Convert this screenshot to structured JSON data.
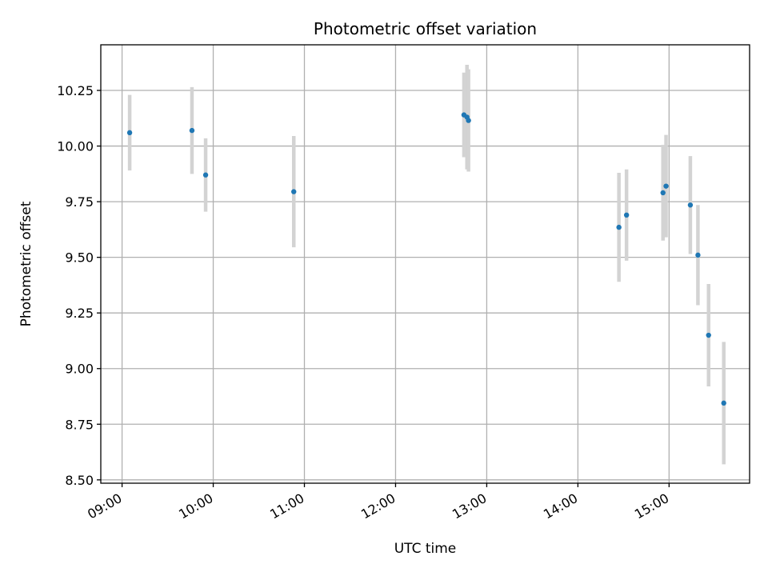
{
  "chart_data": {
    "type": "scatter",
    "title": "Photometric offset variation",
    "xlabel": "UTC time",
    "ylabel": "Photometric offset",
    "x_ticks": [
      "09:00",
      "10:00",
      "11:00",
      "12:00",
      "13:00",
      "14:00",
      "15:00"
    ],
    "y_ticks": [
      "8.50",
      "8.75",
      "9.00",
      "9.25",
      "9.50",
      "9.75",
      "10.00",
      "10.25"
    ],
    "xlim": [
      "08:46",
      "15:53"
    ],
    "ylim": [
      8.485,
      10.455
    ],
    "grid": true,
    "colors": {
      "marker": "#1f77b4",
      "errorbar": "#d3d3d3",
      "grid": "#b0b0b0"
    },
    "series": [
      {
        "points": [
          {
            "x": "09:05",
            "y": 10.06,
            "yerr": 0.17
          },
          {
            "x": "09:46",
            "y": 10.07,
            "yerr": 0.195
          },
          {
            "x": "09:55",
            "y": 9.87,
            "yerr": 0.165
          },
          {
            "x": "10:53",
            "y": 9.795,
            "yerr": 0.25
          },
          {
            "x": "12:45",
            "y": 10.14,
            "yerr": 0.19
          },
          {
            "x": "12:47",
            "y": 10.13,
            "yerr": 0.235
          },
          {
            "x": "12:48",
            "y": 10.115,
            "yerr": 0.23
          },
          {
            "x": "14:27",
            "y": 9.635,
            "yerr": 0.245
          },
          {
            "x": "14:32",
            "y": 9.69,
            "yerr": 0.205
          },
          {
            "x": "14:56",
            "y": 9.79,
            "yerr": 0.215
          },
          {
            "x": "14:58",
            "y": 9.82,
            "yerr": 0.23
          },
          {
            "x": "15:14",
            "y": 9.735,
            "yerr": 0.22
          },
          {
            "x": "15:19",
            "y": 9.51,
            "yerr": 0.225
          },
          {
            "x": "15:26",
            "y": 9.15,
            "yerr": 0.23
          },
          {
            "x": "15:36",
            "y": 8.845,
            "yerr": 0.275
          }
        ]
      }
    ]
  }
}
